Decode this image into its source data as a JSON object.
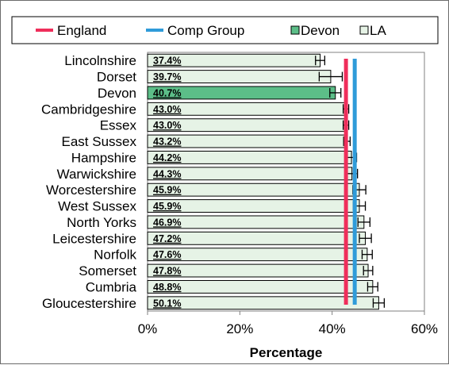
{
  "chart_data": {
    "type": "bar",
    "orientation": "horizontal",
    "categories": [
      "Lincolnshire",
      "Dorset",
      "Devon",
      "Cambridgeshire",
      "Essex",
      "East Sussex",
      "Hampshire",
      "Warwickshire",
      "Worcestershire",
      "West Sussex",
      "North Yorks",
      "Leicestershire",
      "Norfolk",
      "Somerset",
      "Cumbria",
      "Gloucestershire"
    ],
    "series": [
      {
        "name": "LA",
        "values": [
          37.4,
          39.7,
          40.7,
          43.0,
          43.0,
          43.2,
          44.2,
          44.3,
          45.9,
          45.9,
          46.9,
          47.2,
          47.6,
          47.8,
          48.8,
          50.1
        ],
        "data_labels": [
          "37.4%",
          "39.7%",
          "40.7%",
          "43.0%",
          "43.0%",
          "43.2%",
          "44.2%",
          "44.3%",
          "45.9%",
          "45.9%",
          "46.9%",
          "47.2%",
          "47.6%",
          "47.8%",
          "48.8%",
          "50.1%"
        ],
        "error_plus": [
          1.0,
          2.5,
          1.2,
          0.6,
          0.6,
          0.7,
          1.1,
          1.2,
          1.4,
          1.3,
          1.3,
          1.3,
          1.1,
          1.0,
          1.1,
          1.2
        ],
        "error_minus": [
          1.0,
          2.5,
          1.2,
          0.6,
          0.6,
          0.7,
          1.1,
          1.2,
          1.4,
          1.3,
          1.3,
          1.3,
          1.1,
          1.0,
          1.1,
          1.2
        ]
      }
    ],
    "highlight": {
      "category": "Devon",
      "series_name": "Devon"
    },
    "reference_lines": [
      {
        "name": "England",
        "value": 43.0,
        "color": "#ef2e5b"
      },
      {
        "name": "Comp Group",
        "value": 44.9,
        "color": "#2f9bd9"
      }
    ],
    "legend": {
      "position": "top",
      "items": [
        {
          "label": "England",
          "kind": "line",
          "color": "#ef2e5b"
        },
        {
          "label": "Comp Group",
          "kind": "line",
          "color": "#2f9bd9"
        },
        {
          "label": "Devon",
          "kind": "box",
          "color": "#5cbe88"
        },
        {
          "label": "LA",
          "kind": "box",
          "color": "#e6f3e6"
        }
      ]
    },
    "xlabel": "Percentage",
    "ylabel": "",
    "xlim": [
      0,
      60
    ],
    "xticks": [
      0,
      20,
      40,
      60
    ],
    "xtick_labels": [
      "0%",
      "20%",
      "40%",
      "60%"
    ],
    "grid": false,
    "colors": {
      "bar": "#e6f3e6",
      "highlight_bar": "#5cbe88",
      "bar_border": "#000000",
      "plot_background": "#ffffff",
      "plot_border": "#808080"
    }
  }
}
